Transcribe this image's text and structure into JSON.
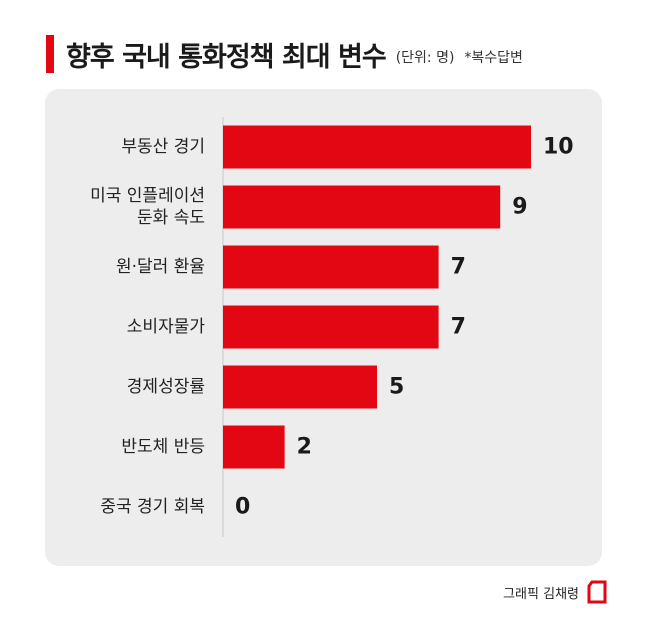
{
  "header": {
    "title": "향후 국내 통화정책 최대 변수",
    "unit": "(단위: 명)",
    "note": "*복수답변"
  },
  "footer": {
    "credit": "그래픽 김채령"
  },
  "colors": {
    "accent": "#e30613",
    "bar": "#e30613",
    "panel": "#ededed",
    "axis": "#c8c8c8"
  },
  "chart_data": {
    "type": "bar",
    "orientation": "horizontal",
    "categories": [
      [
        "부동산 경기"
      ],
      [
        "미국 인플레이션",
        "둔화 속도"
      ],
      [
        "원·달러 환율"
      ],
      [
        "소비자물가"
      ],
      [
        "경제성장률"
      ],
      [
        "반도체 반등"
      ],
      [
        "중국 경기 회복"
      ]
    ],
    "values": [
      10,
      9,
      7,
      7,
      5,
      2,
      0
    ],
    "xlim": [
      0,
      10
    ],
    "grid": false,
    "data_labels": true
  }
}
